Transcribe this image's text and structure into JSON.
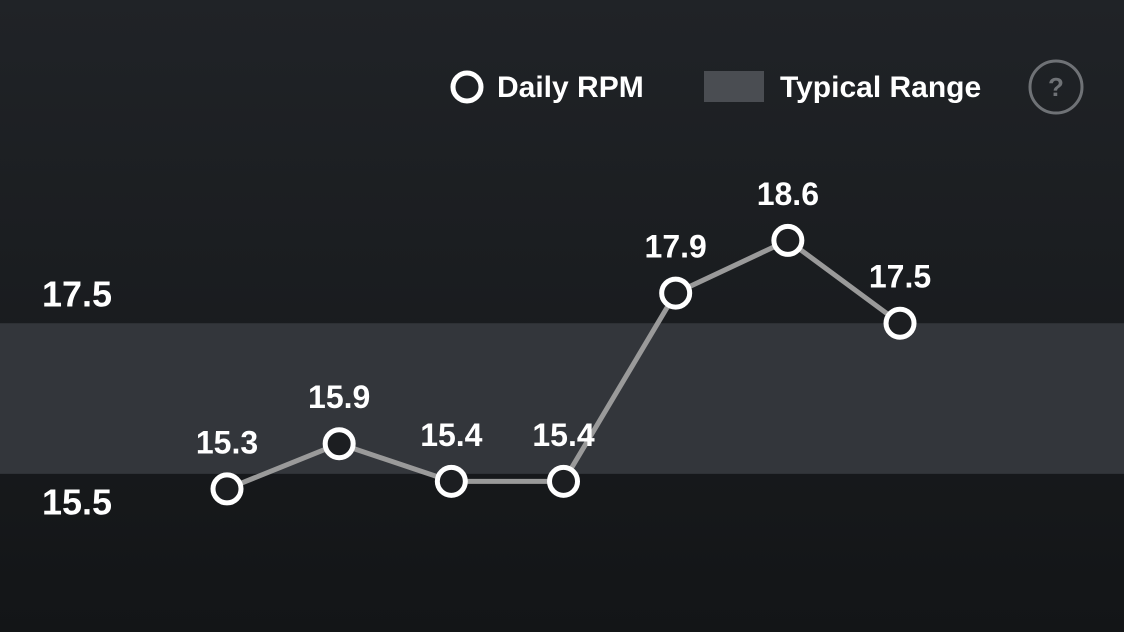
{
  "chart_data": {
    "type": "line",
    "categories": [
      null,
      null,
      null,
      null,
      null,
      null,
      null
    ],
    "series": [
      {
        "name": "Daily RPM",
        "color": "#ffffff",
        "line_color": "#9a9a9a",
        "values": [
          15.3,
          15.9,
          15.4,
          15.4,
          17.9,
          18.6,
          17.5
        ]
      }
    ],
    "band": {
      "name": "Typical Range",
      "range": [
        15.5,
        17.5
      ],
      "color": "#33363b",
      "legend_color": "#4a4d52"
    },
    "ylim": [
      13.4,
      19.8
    ],
    "yticks": [
      15.5,
      17.5
    ],
    "grid": false,
    "help_button": "?"
  }
}
